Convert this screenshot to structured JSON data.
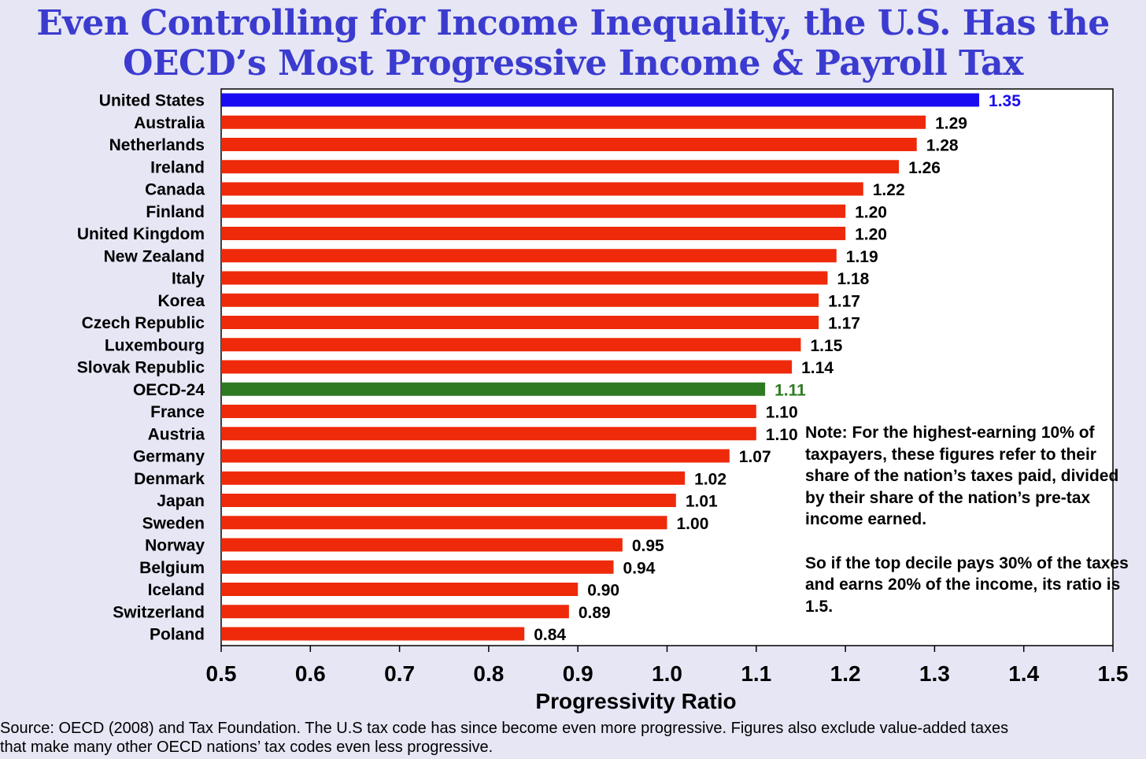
{
  "title": {
    "line1": "Even Controlling for Income Inequality, the U.S. Has the",
    "line2": "OECD’s Most Progressive Income & Payroll Tax"
  },
  "colors": {
    "highlight": "#1a0cf0",
    "default": "#ee2a0a",
    "average": "#2e7a22",
    "title": "#3b3bd0"
  },
  "chart_data": {
    "type": "bar",
    "orientation": "horizontal",
    "categories": [
      "United States",
      "Australia",
      "Netherlands",
      "Ireland",
      "Canada",
      "Finland",
      "United Kingdom",
      "New Zealand",
      "Italy",
      "Korea",
      "Czech Republic",
      "Luxembourg",
      "Slovak Republic",
      "OECD-24",
      "France",
      "Austria",
      "Germany",
      "Denmark",
      "Japan",
      "Sweden",
      "Norway",
      "Belgium",
      "Iceland",
      "Switzerland",
      "Poland"
    ],
    "values": [
      1.35,
      1.29,
      1.28,
      1.26,
      1.22,
      1.2,
      1.2,
      1.19,
      1.18,
      1.17,
      1.17,
      1.15,
      1.14,
      1.11,
      1.1,
      1.1,
      1.07,
      1.02,
      1.01,
      1.0,
      0.95,
      0.94,
      0.9,
      0.89,
      0.84
    ],
    "value_labels": [
      "1.35",
      "1.29",
      "1.28",
      "1.26",
      "1.22",
      "1.20",
      "1.20",
      "1.19",
      "1.18",
      "1.17",
      "1.17",
      "1.15",
      "1.14",
      "1.11",
      "1.10",
      "1.10",
      "1.07",
      "1.02",
      "1.01",
      "1.00",
      "0.95",
      "0.94",
      "0.90",
      "0.89",
      "0.84"
    ],
    "highlights": {
      "United States": "highlight",
      "OECD-24": "average"
    },
    "xlim": [
      0.5,
      1.5
    ],
    "xticks": [
      "0.5",
      "0.6",
      "0.7",
      "0.8",
      "0.9",
      "1.0",
      "1.1",
      "1.2",
      "1.3",
      "1.4",
      "1.5"
    ],
    "xlabel": "Progressivity Ratio",
    "ylabel": "",
    "grid": false
  },
  "note": {
    "paragraph1": "Note: For the highest-earning 10% of taxpayers, these figures refer to their share of the nation’s taxes paid, divided by their share of the nation’s pre-tax income earned.",
    "paragraph2": "So if the top decile pays 30% of the taxes and earns 20% of the income, its ratio is 1.5."
  },
  "source": "Source: OECD (2008) and Tax Foundation. The U.S tax code has since become even more progressive. Figures also exclude value-added taxes that make many other OECD nations’ tax codes even less progressive."
}
